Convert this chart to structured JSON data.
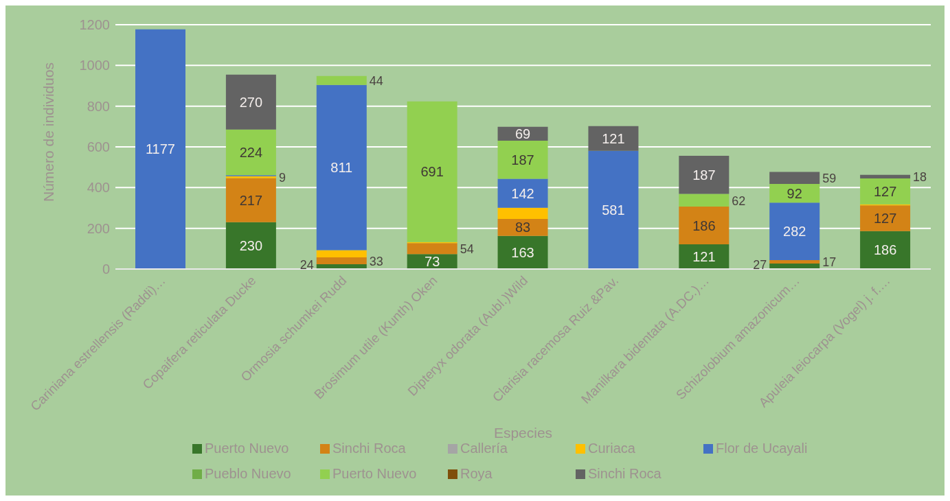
{
  "chart_data": {
    "type": "bar",
    "stacked": true,
    "xlabel": "Especies",
    "ylabel": "Número de individuos",
    "categories": [
      "Cariniana estrellensis (Raddi)…",
      "Copaifera reticulata  Ducke",
      "Ormosia schumkei Rudd",
      "Brosimum utile (Kunth) Oken",
      "Dipteryx odorata (Aubl.)Wild",
      "Clarisia racemosa Ruiz &Pav.",
      "Manilkara bidentata (A.DC.)…",
      "Schizolobium amazonicum…",
      "Apuleia leiocarpa (Vogel) j. f.…"
    ],
    "ylim": [
      0,
      1200
    ],
    "yticks": [
      0,
      200,
      400,
      600,
      800,
      1000,
      1200
    ],
    "grid": "y",
    "legend": "bottom",
    "series": [
      {
        "name": "Puerto Nuevo",
        "color": "#38762a",
        "values": [
          null,
          230,
          24,
          73,
          163,
          null,
          121,
          27,
          186
        ],
        "value_labels": [
          null,
          "230",
          "24",
          "73",
          "163",
          null,
          "121",
          "27",
          "186"
        ]
      },
      {
        "name": "Sinchi Roca",
        "color": "#d38316",
        "values": [
          null,
          217,
          33,
          54,
          83,
          null,
          186,
          17,
          127
        ],
        "value_labels": [
          null,
          "217",
          "33",
          "54",
          "83",
          null,
          "186",
          "17",
          "127"
        ]
      },
      {
        "name": "Callería",
        "color": "#a5a5a5",
        "values": [
          null,
          null,
          null,
          null,
          null,
          null,
          null,
          null,
          null
        ]
      },
      {
        "name": "Curiaca",
        "color": "#ffc000",
        "values": [
          null,
          9,
          36,
          5,
          55,
          null,
          null,
          null,
          5
        ],
        "value_labels": [
          null,
          "9",
          null,
          null,
          null,
          null,
          null,
          null,
          null
        ]
      },
      {
        "name": "Flor de Ucayali",
        "color": "#4472c4",
        "values": [
          1177,
          5,
          811,
          null,
          142,
          581,
          null,
          282,
          null
        ],
        "value_labels": [
          "1177",
          null,
          "811",
          null,
          "142",
          "581",
          null,
          "282",
          null
        ]
      },
      {
        "name": "Pueblo Nuevo",
        "color": "#70ad47",
        "values": [
          null,
          null,
          null,
          null,
          null,
          null,
          null,
          null,
          null
        ]
      },
      {
        "name": "Puerto Nuevo",
        "color": "#92d050",
        "values": [
          null,
          224,
          44,
          691,
          187,
          null,
          62,
          92,
          127
        ],
        "value_labels": [
          null,
          "224",
          "44",
          "691",
          "187",
          null,
          "62",
          "92",
          "127"
        ]
      },
      {
        "name": "Roya",
        "color": "#7f4f0a",
        "values": [
          null,
          null,
          null,
          null,
          null,
          null,
          null,
          null,
          null
        ]
      },
      {
        "name": "Sinchi Roca",
        "color": "#636363",
        "values": [
          null,
          270,
          null,
          null,
          69,
          121,
          187,
          59,
          18
        ],
        "value_labels": [
          null,
          "270",
          null,
          null,
          "69",
          "121",
          "187",
          "59",
          "18"
        ]
      }
    ]
  }
}
